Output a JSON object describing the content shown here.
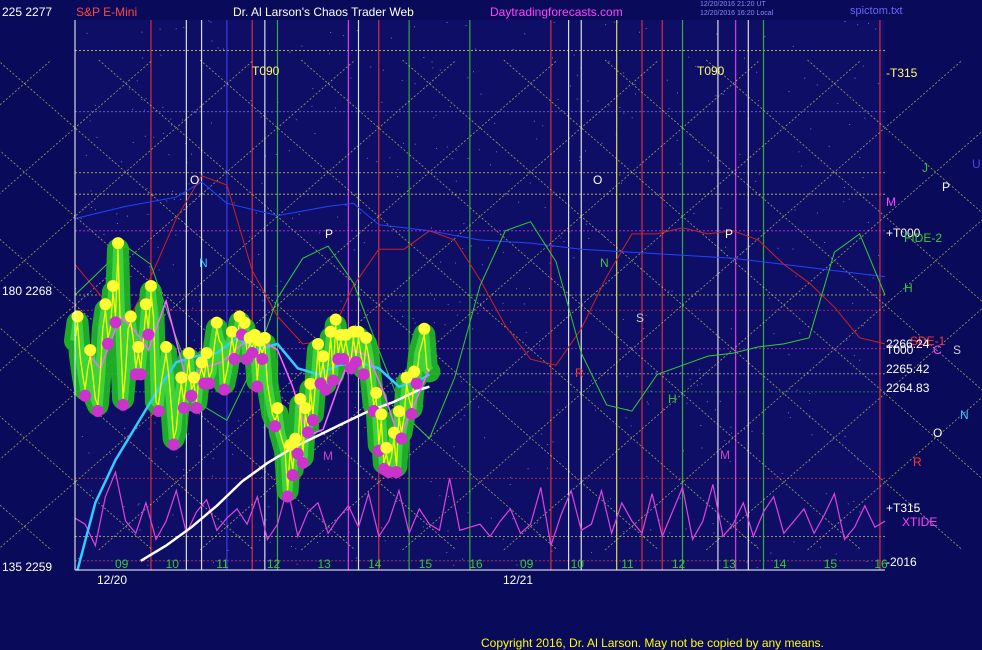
{
  "header": {
    "symbol": "S&P E-Mini",
    "brand": "Dr. Al Larson's Chaos Trader Web",
    "site": "Daytradingforecasts.com",
    "stamp_line1": "12/20/2016 21:20 UT",
    "stamp_line2": "12/20/2016 16:20 Local",
    "filename": "spictom.txt"
  },
  "footer": {
    "copyright": "Copyright 2016, Dr. Al Larson. May not be copied by any means."
  },
  "left_scale": {
    "top": "225  2277",
    "mid": "180  2268",
    "bottom": "135  2259"
  },
  "chart_data": {
    "type": "line",
    "title": "S&P E-Mini",
    "xlabel": "",
    "ylabel": "",
    "ylim": [
      2259,
      2277
    ],
    "grid": true,
    "x_sessions": [
      "12/20",
      "12/21"
    ],
    "hour_ticks": [
      "09",
      "10",
      "11",
      "12",
      "13",
      "14",
      "15",
      "16",
      "09",
      "10",
      "11",
      "12",
      "13",
      "14",
      "15",
      "16"
    ],
    "price_labels": [
      "2266.24",
      "2265.42",
      "2264.83"
    ],
    "flux_labels": [
      "-T315",
      "+T000",
      "T000",
      "+T315",
      "-2016"
    ],
    "time_labels": [
      "T090",
      "T090"
    ],
    "marker_letters": [
      "O",
      "N",
      "P",
      "M",
      "O",
      "N",
      "S",
      "R",
      "H",
      "P",
      "M"
    ],
    "right_legend": [
      "J",
      "U",
      "P",
      "M",
      "+T000",
      "FIDE-2",
      "H",
      "SDE-1",
      "C",
      "S",
      "2266.24",
      "T000",
      "2265.42",
      "2264.83",
      "N",
      "O",
      "R",
      "+T315",
      "XTIDE",
      "-2016"
    ],
    "series": [
      {
        "role": "price",
        "color": "#ffff00",
        "x": [
          0,
          0.05,
          0.1,
          0.15,
          0.2,
          0.25,
          0.3,
          0.35,
          0.4,
          0.45,
          0.5,
          0.55,
          0.6,
          0.65,
          0.7,
          0.75,
          0.8,
          0.85,
          0.9,
          0.95,
          1.0,
          1.05,
          1.1,
          1.15,
          1.2,
          1.25,
          1.3,
          1.35,
          1.4,
          1.45,
          1.5,
          1.55,
          1.6,
          1.65,
          1.7,
          1.75,
          1.8,
          1.85,
          1.9,
          1.95,
          2.0,
          2.05,
          2.1,
          2.15,
          2.2,
          2.25,
          2.3,
          2.35,
          2.4,
          2.45,
          2.5,
          2.55,
          2.6,
          2.65,
          2.7,
          2.75,
          2.8,
          2.85,
          2.9,
          2.95,
          3.0,
          3.05,
          3.1,
          3.15,
          3.2,
          3.25,
          3.3,
          3.35,
          3.4,
          3.45,
          3.5,
          3.55,
          3.6,
          3.65,
          3.7,
          3.75,
          3.8,
          3.85,
          3.9,
          3.95,
          4.0,
          4.05,
          4.1,
          4.15,
          4.2,
          4.25,
          4.3,
          4.35,
          4.4,
          4.45,
          4.5,
          4.55,
          4.6,
          4.65,
          4.7,
          4.75,
          4.8,
          4.85,
          4.9,
          4.95,
          5.0,
          5.05,
          5.1,
          5.15,
          5.2,
          5.25,
          5.3,
          5.35,
          5.4,
          5.45,
          5.5,
          5.55,
          5.6,
          5.65,
          5.7,
          5.75,
          5.8,
          5.85,
          5.9,
          5.95,
          6.0,
          6.05,
          6.1,
          6.15,
          6.2,
          6.25,
          6.3,
          6.35,
          6.4,
          6.45,
          6.5,
          6.55,
          6.6,
          6.65,
          6.7,
          6.75,
          6.8,
          6.85,
          6.9,
          6.95,
          7.0
        ],
        "y": [
          2266.5,
          2267.1,
          2266.0,
          2265.4,
          2264.9,
          2265.6,
          2266.0,
          2265.4,
          2264.6,
          2264.4,
          2265.4,
          2266.9,
          2267.5,
          2266.6,
          2266.9,
          2268.1,
          2267.3,
          2269.5,
          2266.6,
          2264.6,
          2265.5,
          2266.9,
          2267.1,
          2266.6,
          2265.6,
          2266.1,
          2265.6,
          2266.5,
          2267.5,
          2266.9,
          2268.1,
          2267.3,
          2264.5,
          2264.4,
          2265.1,
          2265.6,
          2266.1,
          2265.4,
          2264.4,
          2263.3,
          2263.6,
          2264.5,
          2265.1,
          2264.5,
          2265.2,
          2265.9,
          2264.9,
          2265.1,
          2264.5,
          2265.3,
          2265.6,
          2265.3,
          2265.9,
          2265.3,
          2265.5,
          2266.3,
          2266.9,
          2266.5,
          2266.4,
          2265.1,
          2265.5,
          2266.0,
          2266.6,
          2266.1,
          2266.5,
          2267.1,
          2266.9,
          2266.9,
          2266.1,
          2266.4,
          2266.3,
          2266.5,
          2265.2,
          2266.3,
          2266.1,
          2266.4,
          2265.1,
          2264.6,
          2264.1,
          2263.9,
          2264.1,
          2263.5,
          2263.2,
          2262.9,
          2261.6,
          2262.9,
          2262.3,
          2263.1,
          2263.0,
          2264.4,
          2262.7,
          2264.1,
          2263.7,
          2264.9,
          2264.1,
          2265.1,
          2266.2,
          2265.3,
          2265.8,
          2265.1,
          2265.7,
          2266.6,
          2265.4,
          2267.0,
          2266.1,
          2266.5,
          2266.1,
          2266.5,
          2266.0,
          2265.8,
          2266.6,
          2266.0,
          2266.6,
          2266.0,
          2265.6,
          2266.4,
          2266.0,
          2265.2,
          2264.4,
          2264.6,
          2263.1,
          2263.9,
          2262.5,
          2262.8,
          2262.4,
          2262.7,
          2263.3,
          2262.4,
          2264.0,
          2263.5,
          2264.0,
          2265.1,
          2264.6,
          2264.3,
          2265.3,
          2265.3,
          2266.1,
          2266.4,
          2266.7,
          2265.6,
          2265.5
        ]
      },
      {
        "role": "average-fast",
        "color": "#ff66ff",
        "x": [
          0.2,
          0.5,
          0.9,
          1.2,
          1.45,
          1.8,
          2.2,
          2.5,
          2.9,
          3.3,
          3.7,
          4.0,
          4.3,
          4.6,
          4.9,
          5.2,
          5.5,
          5.8,
          6.1,
          6.4,
          6.7,
          7.0
        ],
        "y": [
          2266.2,
          2265.6,
          2267.3,
          2266.8,
          2266.2,
          2267.8,
          2265.2,
          2265.6,
          2265.8,
          2266.4,
          2266.5,
          2266.2,
          2265.0,
          2263.4,
          2263.6,
          2265.0,
          2266.2,
          2266.0,
          2264.8,
          2263.3,
          2264.4,
          2265.6
        ]
      },
      {
        "role": "average-medium",
        "color": "#33ccff",
        "x": [
          0.05,
          0.4,
          0.8,
          1.2,
          1.6,
          2.0,
          2.4,
          2.8,
          3.2,
          3.6,
          4.0,
          4.4,
          4.8,
          5.2,
          5.6,
          6.0,
          6.4,
          6.8,
          7.0
        ],
        "y": [
          2259.0,
          2261.2,
          2262.6,
          2263.7,
          2264.8,
          2265.8,
          2266.0,
          2266.1,
          2266.6,
          2266.2,
          2266.4,
          2265.6,
          2265.4,
          2265.7,
          2265.8,
          2265.6,
          2265.0,
          2265.2,
          2265.4
        ]
      },
      {
        "role": "average-slow",
        "color": "#ffffff",
        "x": [
          1.3,
          1.8,
          2.3,
          2.8,
          3.3,
          3.8,
          4.3,
          4.8,
          5.3,
          5.8,
          6.3,
          6.8,
          7.0
        ],
        "y": [
          2259.3,
          2259.8,
          2260.4,
          2261.1,
          2261.9,
          2262.5,
          2263.0,
          2263.4,
          2263.8,
          2264.2,
          2264.5,
          2264.9,
          2265.0
        ]
      },
      {
        "role": "forecast-green",
        "color": "#33cc33",
        "x": [
          0,
          0.5,
          1,
          1.5,
          2,
          2.5,
          3,
          3.5,
          4,
          4.5,
          5,
          5.5,
          6,
          6.5,
          7,
          7.5,
          8,
          8.5,
          9,
          9.5,
          10,
          10.5,
          11,
          11.5,
          12,
          12.5,
          13,
          13.5,
          14,
          14.5,
          15,
          15.5,
          16
        ],
        "y": [
          2268.0,
          2268.8,
          2269.6,
          2269.0,
          2266.6,
          2264.4,
          2263.9,
          2265.6,
          2267.9,
          2269.2,
          2269.6,
          2268.4,
          2266.2,
          2264.1,
          2263.3,
          2265.3,
          2268.3,
          2270.1,
          2270.4,
          2269.1,
          2266.1,
          2264.4,
          2264.2,
          2265.4,
          2265.7,
          2266.0,
          2266.1,
          2266.3,
          2266.4,
          2266.6,
          2269.4,
          2270.0,
          2268.0
        ]
      },
      {
        "role": "forecast-red",
        "color": "#cc2222",
        "x": [
          0,
          0.5,
          1,
          1.5,
          2,
          2.5,
          3,
          3.5,
          4,
          4.5,
          5,
          5.5,
          6,
          6.5,
          7,
          7.5,
          8,
          8.5,
          9,
          9.5,
          10,
          10.5,
          11,
          11.5,
          12,
          12.5,
          13,
          13.5,
          14,
          14.5,
          15,
          15.5,
          16
        ],
        "y": [
          2269.0,
          2268.0,
          2267.0,
          2268.6,
          2270.5,
          2271.9,
          2271.6,
          2268.8,
          2267.3,
          2266.4,
          2266.5,
          2268.3,
          2269.5,
          2269.5,
          2270.1,
          2269.8,
          2268.5,
          2267.0,
          2265.9,
          2265.7,
          2266.9,
          2268.6,
          2270.0,
          2270.0,
          2270.2,
          2270.0,
          2270.1,
          2269.8,
          2269.0,
          2268.4,
          2267.6,
          2266.6,
          2266.4
        ]
      },
      {
        "role": "forecast-blue",
        "color": "#2244ff",
        "x": [
          0,
          1,
          2,
          2.5,
          3,
          4,
          5,
          5.5,
          6,
          7,
          8,
          9,
          10,
          11,
          12,
          13,
          14,
          15,
          16
        ],
        "y": [
          2270.5,
          2270.9,
          2271.2,
          2271.7,
          2271.0,
          2270.6,
          2270.9,
          2271.0,
          2270.3,
          2270.1,
          2269.8,
          2269.7,
          2269.5,
          2269.4,
          2269.3,
          2269.2,
          2269.0,
          2268.8,
          2268.6
        ]
      },
      {
        "role": "xtide",
        "color": "#dd44dd",
        "x": [
          0,
          0.2,
          0.4,
          0.6,
          0.8,
          1.0,
          1.2,
          1.4,
          1.6,
          1.8,
          2.0,
          2.2,
          2.4,
          2.6,
          2.8,
          3.0,
          3.2,
          3.4,
          3.6,
          3.8,
          4.0,
          4.2,
          4.4,
          4.6,
          4.8,
          5.0,
          5.2,
          5.4,
          5.6,
          5.8,
          6.0,
          6.2,
          6.4,
          6.6,
          6.8,
          7.0,
          7.2,
          7.4,
          7.6,
          7.8,
          8.0,
          8.2,
          8.4,
          8.6,
          8.8,
          9.0,
          9.2,
          9.4,
          9.6,
          9.8,
          10.0,
          10.2,
          10.4,
          10.6,
          10.8,
          11.0,
          11.2,
          11.4,
          11.6,
          11.8,
          12.0,
          12.2,
          12.4,
          12.6,
          12.8,
          13.0,
          13.2,
          13.4,
          13.6,
          13.8,
          14.0,
          14.2,
          14.4,
          14.6,
          14.8,
          15.0,
          15.2,
          15.4,
          15.6,
          15.8,
          16.0
        ],
        "y": [
          2260.7,
          2260.5,
          2259.8,
          2261.4,
          2262.2,
          2260.6,
          2260.2,
          2261.2,
          2260.0,
          2260.6,
          2261.6,
          2260.2,
          2260.9,
          2261.3,
          2260.3,
          2260.7,
          2261.0,
          2260.5,
          2261.4,
          2260.0,
          2260.5,
          2261.7,
          2260.1,
          2260.9,
          2261.2,
          2260.2,
          2260.7,
          2261.1,
          2260.4,
          2261.5,
          2260.1,
          2260.6,
          2261.6,
          2260.2,
          2261.0,
          2260.5,
          2260.3,
          2262.0,
          2260.3,
          2260.4,
          2260.5,
          2260.1,
          2260.6,
          2261.0,
          2260.2,
          2260.5,
          2261.7,
          2259.8,
          2260.8,
          2261.6,
          2260.3,
          2260.5,
          2261.6,
          2260.2,
          2261.2,
          2260.6,
          2260.2,
          2261.5,
          2260.1,
          2260.9,
          2261.7,
          2260.0,
          2260.6,
          2261.8,
          2260.1,
          2260.5,
          2261.2,
          2260.1,
          2260.9,
          2261.4,
          2260.2,
          2260.6,
          2261.0,
          2260.2,
          2260.8,
          2261.5,
          2260.0,
          2260.4,
          2261.1,
          2260.4,
          2260.6
        ]
      }
    ]
  }
}
